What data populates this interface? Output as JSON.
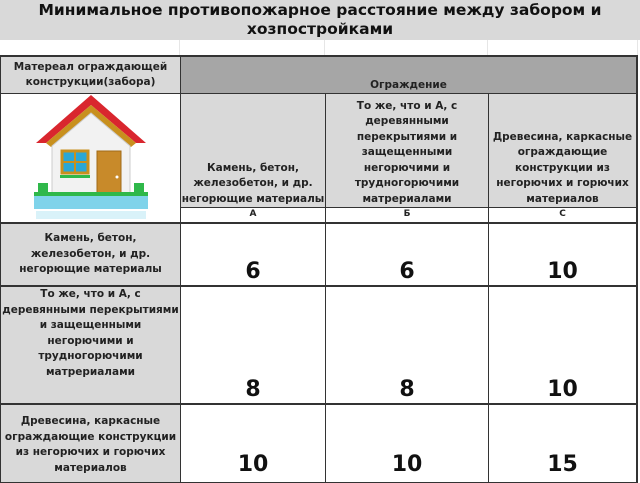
{
  "title": "Минимальное противопожарное расстояние между забором и хозпостройками",
  "table": {
    "corner_header": "Матереал ограждающей конструкции(забора)",
    "group_header": "Ограждение",
    "columns": [
      {
        "label": "Камень, бетон, железобетон, и др. негорющие материалы",
        "code": "А"
      },
      {
        "label": "То же, что и А, с деревянными перекрытиями и защещенными негорючими и трудногорючими матрериалами",
        "code": "Б"
      },
      {
        "label": "Древесина, каркасные ограждающие конструкции из негорючих и горючих материалов",
        "code": "С"
      }
    ],
    "rows": [
      {
        "label": "Камень, бетон, железобетон, и др. негорющие материалы",
        "values": [
          "6",
          "6",
          "10"
        ]
      },
      {
        "label": "То же, что и А, с деревянными перекрытиями и защещенными негорючими и трудногорючими матрериалами",
        "values": [
          "8",
          "8",
          "10"
        ]
      },
      {
        "label": "Древесина, каркасные ограждающие конструкции из негорючих и горючих материалов",
        "values": [
          "10",
          "10",
          "15"
        ]
      }
    ]
  },
  "image": {
    "icon": "house-icon",
    "colors": {
      "roof": "#d9262e",
      "wall": "#f2f2f2",
      "door": "#c88a2a",
      "window": "#2aa7d6",
      "fence": "#7fd3ea",
      "grass": "#2fb84a"
    }
  }
}
